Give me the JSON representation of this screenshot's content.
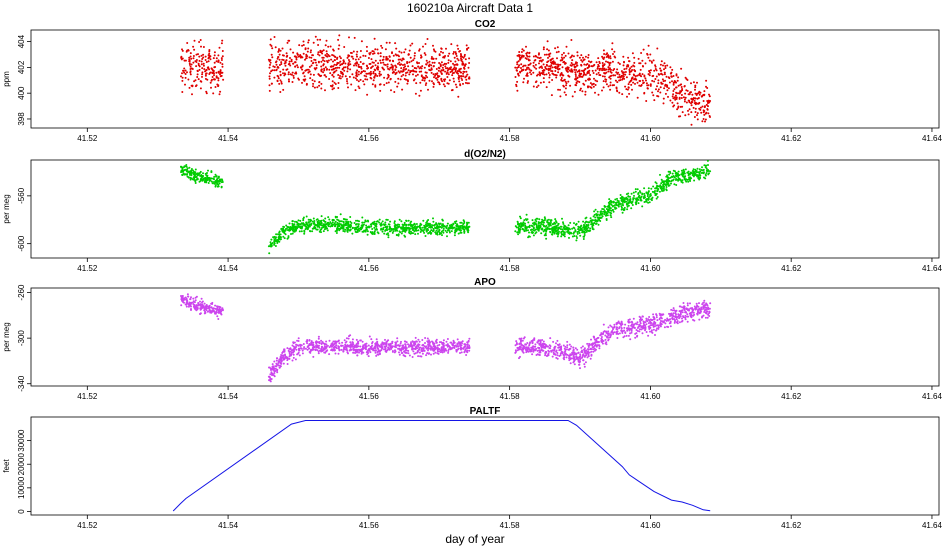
{
  "main_title": "160210a   Aircraft Data 1",
  "xlabel": "day of year",
  "chart_data": [
    {
      "type": "scatter",
      "title": "CO2",
      "ylabel": "ppm",
      "color": "#e00000",
      "xlim": [
        41.512,
        41.641
      ],
      "ylim": [
        397.3,
        404.9
      ],
      "xticks": [
        41.52,
        41.54,
        41.56,
        41.58,
        41.6,
        41.62,
        41.64
      ],
      "xtick_labels": [
        "41.52",
        "41.54",
        "41.56",
        "41.58",
        "41.60",
        "41.62",
        "41.64"
      ],
      "yticks": [
        398,
        400,
        402,
        404
      ],
      "ytick_labels": [
        "398",
        "400",
        "402",
        "404"
      ],
      "segments": [
        {
          "x": [
            41.5333,
            41.536,
            41.5393
          ],
          "y": [
            402.0,
            402.0,
            402.0
          ],
          "noise": 0.9
        },
        {
          "x": [
            41.5458,
            41.55,
            41.56,
            41.57,
            41.5743
          ],
          "y": [
            402.1,
            402.2,
            402.0,
            402.1,
            402.0
          ],
          "noise": 0.9
        },
        {
          "x": [
            41.5808,
            41.585,
            41.59,
            41.595,
            41.6,
            41.6025,
            41.604,
            41.606,
            41.6085
          ],
          "y": [
            402.1,
            402.0,
            401.7,
            401.6,
            401.4,
            401.0,
            400.0,
            399.5,
            399.0
          ],
          "noise": 0.8
        }
      ]
    },
    {
      "type": "scatter",
      "title": "d(O2/N2)",
      "ylabel": "per meg",
      "color": "#00cc00",
      "xlim": [
        41.512,
        41.641
      ],
      "ylim": [
        -612,
        -530
      ],
      "xticks": [
        41.52,
        41.54,
        41.56,
        41.58,
        41.6,
        41.62,
        41.64
      ],
      "xtick_labels": [
        "41.52",
        "41.54",
        "41.56",
        "41.58",
        "41.60",
        "41.62",
        "41.64"
      ],
      "yticks": [
        -600,
        -560
      ],
      "ytick_labels": [
        "-600",
        "-560"
      ],
      "segments": [
        {
          "x": [
            41.5333,
            41.536,
            41.5393
          ],
          "y": [
            -538,
            -544,
            -549
          ],
          "noise": 2.5
        },
        {
          "x": [
            41.5458,
            41.548,
            41.55,
            41.555,
            41.56,
            41.565,
            41.57,
            41.5743
          ],
          "y": [
            -602,
            -590,
            -585,
            -584,
            -586,
            -587,
            -587,
            -586
          ],
          "noise": 3.0
        },
        {
          "x": [
            41.5808,
            41.585,
            41.588,
            41.59,
            41.592,
            41.595,
            41.598,
            41.6,
            41.603,
            41.606,
            41.6085
          ],
          "y": [
            -586,
            -586,
            -588,
            -590,
            -580,
            -567,
            -562,
            -560,
            -545,
            -543,
            -538
          ],
          "noise": 3.5
        }
      ]
    },
    {
      "type": "scatter",
      "title": "APO",
      "ylabel": "per meg",
      "color": "#cc44ee",
      "xlim": [
        41.512,
        41.641
      ],
      "ylim": [
        -342,
        -256
      ],
      "xticks": [
        41.52,
        41.54,
        41.56,
        41.58,
        41.6,
        41.62,
        41.64
      ],
      "xtick_labels": [
        "41.52",
        "41.54",
        "41.56",
        "41.58",
        "41.60",
        "41.62",
        "41.64"
      ],
      "yticks": [
        -340,
        -300,
        -260
      ],
      "ytick_labels": [
        "-340",
        "-300",
        "-260"
      ],
      "segments": [
        {
          "x": [
            41.5333,
            41.536,
            41.5393
          ],
          "y": [
            -266,
            -272,
            -277
          ],
          "noise": 3.0
        },
        {
          "x": [
            41.5458,
            41.548,
            41.55,
            41.555,
            41.56,
            41.565,
            41.57,
            41.5743
          ],
          "y": [
            -332,
            -316,
            -308,
            -307,
            -308,
            -308,
            -308,
            -308
          ],
          "noise": 3.5
        },
        {
          "x": [
            41.5808,
            41.585,
            41.588,
            41.59,
            41.592,
            41.595,
            41.598,
            41.6,
            41.603,
            41.606,
            41.6085
          ],
          "y": [
            -308,
            -308,
            -312,
            -318,
            -305,
            -292,
            -290,
            -288,
            -282,
            -275,
            -275
          ],
          "noise": 4.0
        }
      ]
    },
    {
      "type": "line",
      "title": "PALTF",
      "ylabel": "feet",
      "color": "#1414e6",
      "xlim": [
        41.512,
        41.641
      ],
      "ylim": [
        -1500,
        40000
      ],
      "xticks": [
        41.52,
        41.54,
        41.56,
        41.58,
        41.6,
        41.62,
        41.64
      ],
      "xtick_labels": [
        "41.52",
        "41.54",
        "41.56",
        "41.58",
        "41.60",
        "41.62",
        "41.64"
      ],
      "yticks": [
        0,
        10000,
        20000,
        30000
      ],
      "ytick_labels": [
        "0",
        "10000",
        "20000",
        "30000"
      ],
      "x": [
        41.5322,
        41.5332,
        41.534,
        41.549,
        41.551,
        41.5883,
        41.5895,
        41.596,
        41.597,
        41.6005,
        41.603,
        41.6045,
        41.606,
        41.6075,
        41.6085
      ],
      "y": [
        200,
        3200,
        5500,
        37000,
        38500,
        38500,
        36500,
        19000,
        15500,
        8500,
        4800,
        4000,
        2600,
        700,
        300
      ]
    }
  ]
}
